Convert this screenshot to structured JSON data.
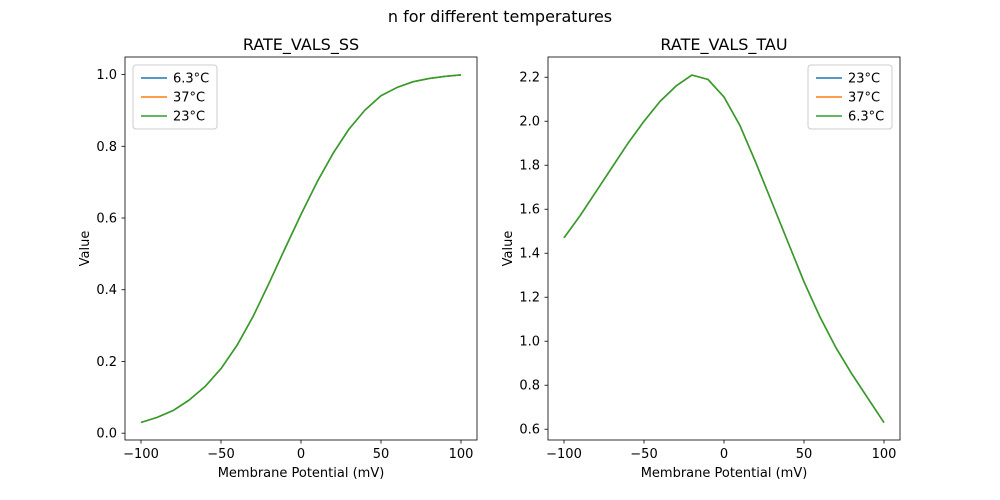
{
  "figure": {
    "suptitle": "n for different temperatures"
  },
  "colors": {
    "series_blue": "#1f77b4",
    "series_orange": "#ff7f0e",
    "series_green": "#2ca02c",
    "legend_border": "#cccccc",
    "axes": "#000000"
  },
  "chart_data": [
    {
      "type": "line",
      "title": "RATE_VALS_SS",
      "xlabel": "Membrane Potential (mV)",
      "ylabel": "Value",
      "xlim": [
        -110,
        110
      ],
      "ylim": [
        -0.019,
        1.049
      ],
      "xticks": [
        -100,
        -50,
        0,
        50,
        100
      ],
      "xtick_labels": [
        "−100",
        "−50",
        "0",
        "50",
        "100"
      ],
      "yticks": [
        0.0,
        0.2,
        0.4,
        0.6,
        0.8,
        1.0
      ],
      "ytick_labels": [
        "0.0",
        "0.2",
        "0.4",
        "0.6",
        "0.8",
        "1.0"
      ],
      "grid": false,
      "legend": {
        "position": "upper-left",
        "entries": [
          {
            "label": "6.3°C",
            "color": "#1f77b4"
          },
          {
            "label": "37°C",
            "color": "#ff7f0e"
          },
          {
            "label": "23°C",
            "color": "#2ca02c"
          }
        ]
      },
      "x": [
        -100,
        -90,
        -80,
        -70,
        -60,
        -50,
        -40,
        -30,
        -20,
        -10,
        0,
        10,
        20,
        30,
        40,
        50,
        60,
        70,
        80,
        90,
        100
      ],
      "series": [
        {
          "name": "6.3°C",
          "color": "#1f77b4",
          "values": [
            0.03,
            0.044,
            0.063,
            0.092,
            0.13,
            0.18,
            0.245,
            0.325,
            0.418,
            0.515,
            0.61,
            0.7,
            0.78,
            0.848,
            0.901,
            0.941,
            0.964,
            0.98,
            0.989,
            0.995,
            0.999
          ]
        },
        {
          "name": "37°C",
          "color": "#ff7f0e",
          "values": [
            0.03,
            0.044,
            0.063,
            0.092,
            0.13,
            0.18,
            0.245,
            0.325,
            0.418,
            0.515,
            0.61,
            0.7,
            0.78,
            0.848,
            0.901,
            0.941,
            0.964,
            0.98,
            0.989,
            0.995,
            0.999
          ]
        },
        {
          "name": "23°C",
          "color": "#2ca02c",
          "values": [
            0.03,
            0.044,
            0.063,
            0.092,
            0.13,
            0.18,
            0.245,
            0.325,
            0.418,
            0.515,
            0.61,
            0.7,
            0.78,
            0.848,
            0.901,
            0.941,
            0.964,
            0.98,
            0.989,
            0.995,
            0.999
          ]
        }
      ]
    },
    {
      "type": "line",
      "title": "RATE_VALS_TAU",
      "xlabel": "Membrane Potential (mV)",
      "ylabel": "Value",
      "xlim": [
        -110,
        110
      ],
      "ylim": [
        0.551,
        2.292
      ],
      "xticks": [
        -100,
        -50,
        0,
        50,
        100
      ],
      "xtick_labels": [
        "−100",
        "−50",
        "0",
        "50",
        "100"
      ],
      "yticks": [
        0.6,
        0.8,
        1.0,
        1.2,
        1.4,
        1.6,
        1.8,
        2.0,
        2.2
      ],
      "ytick_labels": [
        "0.6",
        "0.8",
        "1.0",
        "1.2",
        "1.4",
        "1.6",
        "1.8",
        "2.0",
        "2.2"
      ],
      "grid": false,
      "legend": {
        "position": "upper-right",
        "entries": [
          {
            "label": "23°C",
            "color": "#1f77b4"
          },
          {
            "label": "37°C",
            "color": "#ff7f0e"
          },
          {
            "label": "6.3°C",
            "color": "#2ca02c"
          }
        ]
      },
      "x": [
        -100,
        -90,
        -80,
        -70,
        -60,
        -50,
        -40,
        -30,
        -20,
        -10,
        0,
        10,
        20,
        30,
        40,
        50,
        60,
        70,
        80,
        90,
        100
      ],
      "series": [
        {
          "name": "23°C",
          "color": "#1f77b4",
          "values": [
            1.47,
            1.57,
            1.68,
            1.79,
            1.9,
            2.0,
            2.09,
            2.16,
            2.21,
            2.19,
            2.11,
            1.98,
            1.81,
            1.63,
            1.45,
            1.27,
            1.11,
            0.97,
            0.85,
            0.74,
            0.63
          ]
        },
        {
          "name": "37°C",
          "color": "#ff7f0e",
          "values": [
            1.47,
            1.57,
            1.68,
            1.79,
            1.9,
            2.0,
            2.09,
            2.16,
            2.21,
            2.19,
            2.11,
            1.98,
            1.81,
            1.63,
            1.45,
            1.27,
            1.11,
            0.97,
            0.85,
            0.74,
            0.63
          ]
        },
        {
          "name": "6.3°C",
          "color": "#2ca02c",
          "values": [
            1.47,
            1.57,
            1.68,
            1.79,
            1.9,
            2.0,
            2.09,
            2.16,
            2.21,
            2.19,
            2.11,
            1.98,
            1.81,
            1.63,
            1.45,
            1.27,
            1.11,
            0.97,
            0.85,
            0.74,
            0.63
          ]
        }
      ]
    }
  ]
}
